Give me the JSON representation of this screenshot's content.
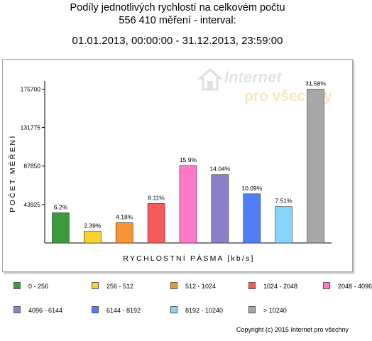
{
  "header": {
    "line1": "Podíly jednotlivých rychlostí na celkovém počtu",
    "line2": "556 410 měření - interval:",
    "line3": "01.01.2013, 00:00:00 - 31.12.2013, 23:59:00"
  },
  "watermark": {
    "line1": "Internet",
    "line2": "pro všechny"
  },
  "copyright": "Copyright (c) 2015 Internet pro všechny",
  "chart_data": {
    "type": "bar",
    "xlabel": "RYCHLOSTNÍ PÁSMA [kb/s]",
    "ylabel": "POČET MĚŘENÍ",
    "ylim": [
      0,
      185000
    ],
    "yticks": [
      43925,
      87850,
      131775,
      175700
    ],
    "ytick_labels": [
      "43925",
      "87850",
      "131775",
      "175700"
    ],
    "grid": false,
    "legend_position": "bottom",
    "categories": [
      "0 - 256",
      "256 - 512",
      "512 - 1024",
      "1024 - 2048",
      "2048 - 4096",
      "4096 - 6144",
      "6144 - 8192",
      "8192 - 10240",
      "> 10240"
    ],
    "values": [
      34498,
      13298,
      23258,
      45125,
      88469,
      78120,
      56142,
      41786,
      175714
    ],
    "data_labels": [
      "6.2%",
      "2.39%",
      "4.18%",
      "8.11%",
      "15.9%",
      "14.04%",
      "10.09%",
      "7.51%",
      "31.58%"
    ],
    "colors": [
      "#3c9a3c",
      "#f7d230",
      "#f79433",
      "#f85a5a",
      "#ff7ac6",
      "#8a7fc9",
      "#4f7ef7",
      "#86d4fb",
      "#a8a8a8"
    ]
  }
}
